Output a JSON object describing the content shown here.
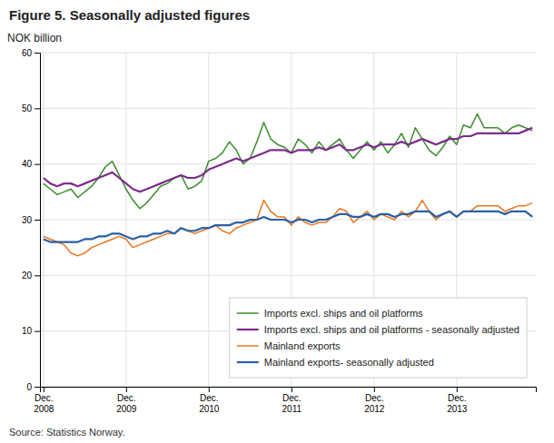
{
  "chart_data": {
    "type": "line",
    "title": "Figure 5. Seasonally adjusted figures",
    "y_label": "NOK billion",
    "source": "Source: Statistics Norway.",
    "categories": [
      "Dec.\n2008",
      null,
      null,
      null,
      null,
      null,
      null,
      null,
      null,
      null,
      null,
      null,
      "Dec.\n2009",
      null,
      null,
      null,
      null,
      null,
      null,
      null,
      null,
      null,
      null,
      null,
      "Dec.\n2010",
      null,
      null,
      null,
      null,
      null,
      null,
      null,
      null,
      null,
      null,
      null,
      "Dec.\n2011",
      null,
      null,
      null,
      null,
      null,
      null,
      null,
      null,
      null,
      null,
      null,
      "Dec.\n2012",
      null,
      null,
      null,
      null,
      null,
      null,
      null,
      null,
      null,
      null,
      null,
      "Dec.\n2013",
      null,
      null,
      null,
      null,
      null,
      null,
      null,
      null,
      null,
      null,
      null
    ],
    "ylim": [
      0,
      60
    ],
    "yticks": [
      0,
      10,
      20,
      30,
      40,
      50,
      60
    ],
    "grid": true,
    "legend": "lower right",
    "series": [
      {
        "name": "Imports excl. ships and oil platforms",
        "color": "#3d8c2f",
        "values": [
          36.5,
          35.5,
          34.5,
          35.0,
          35.5,
          34.0,
          35.0,
          36.0,
          37.5,
          39.5,
          40.5,
          38.0,
          35.5,
          33.5,
          32.0,
          33.0,
          34.5,
          36.0,
          36.5,
          37.5,
          38.0,
          35.5,
          36.0,
          37.0,
          40.5,
          41.0,
          42.0,
          44.0,
          42.5,
          40.0,
          41.0,
          44.0,
          47.5,
          44.5,
          43.5,
          43.0,
          42.0,
          44.5,
          43.5,
          42.0,
          44.0,
          42.5,
          43.5,
          44.5,
          42.5,
          41.0,
          42.5,
          44.0,
          42.5,
          44.0,
          42.0,
          43.5,
          45.5,
          43.0,
          46.5,
          44.5,
          42.5,
          41.5,
          43.0,
          45.0,
          43.5,
          47.0,
          46.5,
          49.0,
          46.5,
          46.5,
          46.5,
          45.5,
          46.5,
          47.0,
          46.5,
          46.0
        ]
      },
      {
        "name": "Imports excl. ships and oil platforms - seasonally adjusted",
        "color": "#7b2d8b",
        "values": [
          37.5,
          36.5,
          36.0,
          36.5,
          36.5,
          36.0,
          36.5,
          37.0,
          37.5,
          38.0,
          38.5,
          37.5,
          36.5,
          35.5,
          35.0,
          35.5,
          36.0,
          36.5,
          37.0,
          37.5,
          38.0,
          37.5,
          37.5,
          38.0,
          39.0,
          39.5,
          40.0,
          40.5,
          41.0,
          40.5,
          41.0,
          41.5,
          42.0,
          42.5,
          42.5,
          42.5,
          42.0,
          42.5,
          42.5,
          42.5,
          43.0,
          42.5,
          43.0,
          43.5,
          42.5,
          42.5,
          43.0,
          43.5,
          43.0,
          43.5,
          43.5,
          43.5,
          44.0,
          43.5,
          44.0,
          44.5,
          44.0,
          43.5,
          44.0,
          44.5,
          44.5,
          45.0,
          45.0,
          45.5,
          45.5,
          45.5,
          45.5,
          45.5,
          45.5,
          45.5,
          46.0,
          46.5
        ]
      },
      {
        "name": "Mainland exports",
        "color": "#e87722",
        "values": [
          27.0,
          26.5,
          26.0,
          25.5,
          24.0,
          23.5,
          24.0,
          25.0,
          25.5,
          26.0,
          26.5,
          27.0,
          26.5,
          25.0,
          25.5,
          26.0,
          26.5,
          27.0,
          27.5,
          27.5,
          28.5,
          28.0,
          27.5,
          28.0,
          28.5,
          29.0,
          28.0,
          27.5,
          28.5,
          29.0,
          29.5,
          30.0,
          33.5,
          31.5,
          30.5,
          30.5,
          29.0,
          30.5,
          29.5,
          29.0,
          29.5,
          29.5,
          30.5,
          32.0,
          31.5,
          29.5,
          30.5,
          31.5,
          30.0,
          31.0,
          30.5,
          30.0,
          31.5,
          30.5,
          31.5,
          33.5,
          31.5,
          30.0,
          31.0,
          31.5,
          30.5,
          31.5,
          31.5,
          32.5,
          32.5,
          32.5,
          32.5,
          31.5,
          32.0,
          32.5,
          32.5,
          33.0
        ]
      },
      {
        "name": "Mainland exports- seasonally adjusted",
        "color": "#2b5fa5",
        "values": [
          26.5,
          26.0,
          26.0,
          26.0,
          26.0,
          26.0,
          26.5,
          26.5,
          27.0,
          27.0,
          27.5,
          27.5,
          27.0,
          26.5,
          27.0,
          27.0,
          27.5,
          27.5,
          28.0,
          27.5,
          28.5,
          28.0,
          28.0,
          28.5,
          28.5,
          29.0,
          29.0,
          29.0,
          29.5,
          29.5,
          30.0,
          30.0,
          30.5,
          30.0,
          30.0,
          30.0,
          29.5,
          30.0,
          30.0,
          29.5,
          30.0,
          30.0,
          30.5,
          31.0,
          31.0,
          30.5,
          30.5,
          31.0,
          30.5,
          31.0,
          31.0,
          30.5,
          31.0,
          31.0,
          31.5,
          31.5,
          31.5,
          30.5,
          31.0,
          31.5,
          30.5,
          31.5,
          31.5,
          31.5,
          31.5,
          31.5,
          31.5,
          31.0,
          31.5,
          31.5,
          31.5,
          30.5
        ]
      }
    ]
  }
}
